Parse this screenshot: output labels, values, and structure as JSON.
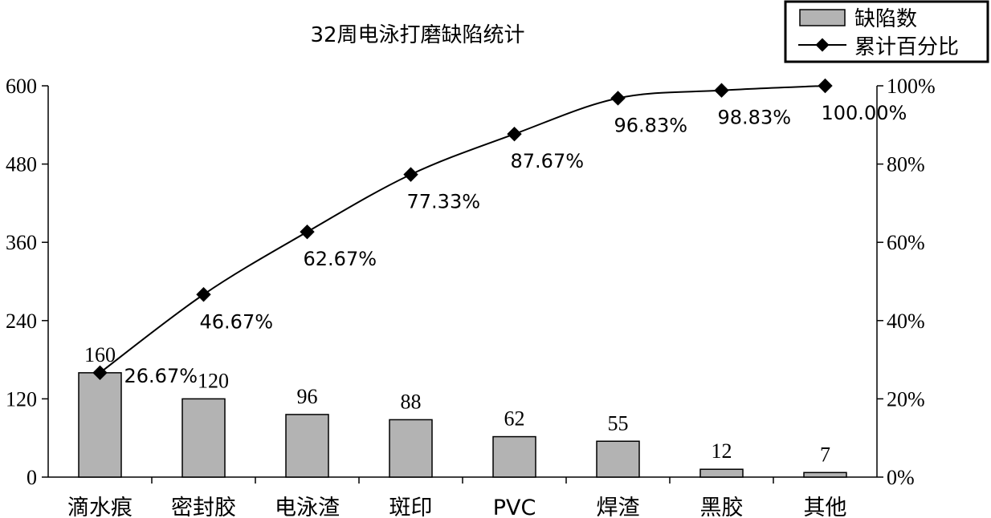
{
  "chart_data": {
    "type": "bar",
    "title": "32周电泳打磨缺陷统计",
    "categories": [
      "滴水痕",
      "密封胶",
      "电泳渣",
      "斑印",
      "PVC",
      "焊渣",
      "黑胶",
      "其他"
    ],
    "series": [
      {
        "name": "缺陷数",
        "type": "bar",
        "axis": "left",
        "values": [
          160,
          120,
          96,
          88,
          62,
          55,
          12,
          7
        ],
        "data_labels": [
          "160",
          "120",
          "96",
          "88",
          "62",
          "55",
          "12",
          "7"
        ],
        "color": "#b3b3b3"
      },
      {
        "name": "累计百分比",
        "type": "line",
        "axis": "right",
        "marker": "diamond",
        "values": [
          26.67,
          46.67,
          62.67,
          77.33,
          87.67,
          96.83,
          98.83,
          100.0
        ],
        "data_labels": [
          "26.67%",
          "46.67%",
          "62.67%",
          "77.33%",
          "87.67%",
          "96.83%",
          "98.83%",
          "100.00%"
        ],
        "color": "#000000"
      }
    ],
    "y_left": {
      "ylim": [
        0,
        600
      ],
      "ticks": [
        0,
        120,
        240,
        360,
        480,
        600
      ],
      "tick_labels": [
        "0",
        "120",
        "240",
        "360",
        "480",
        "600"
      ]
    },
    "y_right": {
      "ylim": [
        0,
        100
      ],
      "ticks": [
        0,
        20,
        40,
        60,
        80,
        100
      ],
      "tick_labels": [
        "0%",
        "20%",
        "40%",
        "60%",
        "80%",
        "100%"
      ]
    },
    "legend_position": "top-right",
    "grid": false
  }
}
